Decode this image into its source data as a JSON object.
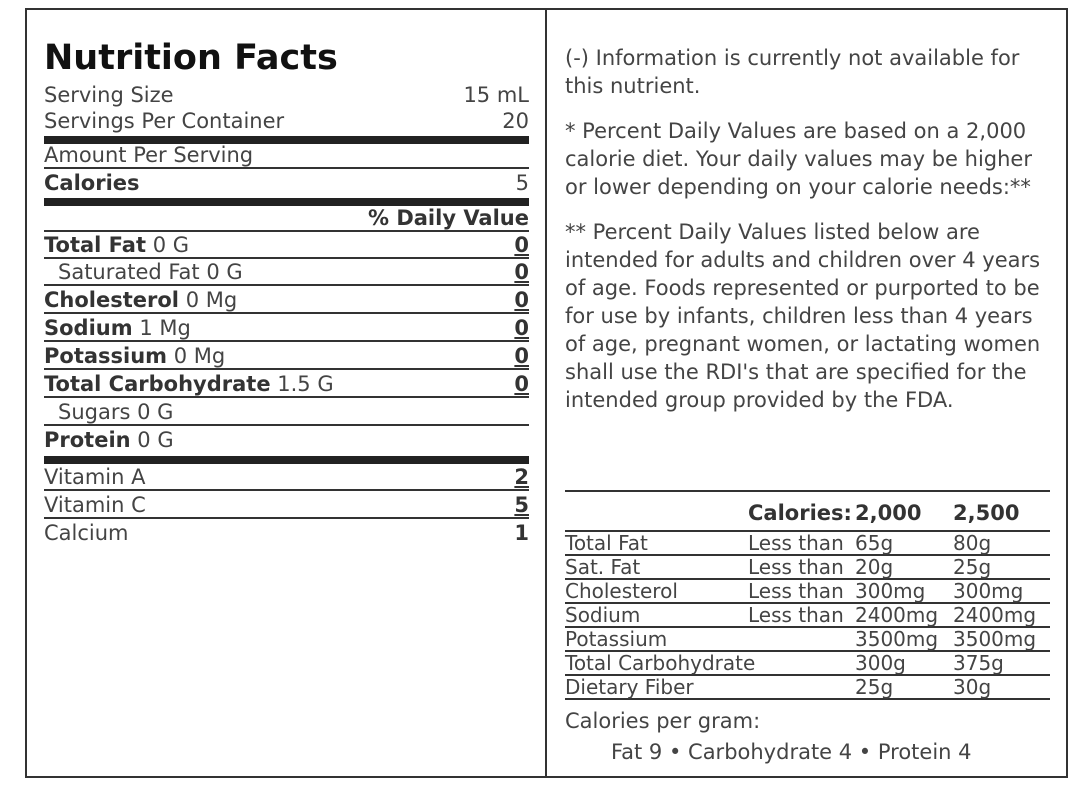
{
  "title": "Nutrition Facts",
  "serving": [
    {
      "label": "Serving Size",
      "value": "15 mL"
    },
    {
      "label": "Servings Per Container",
      "value": "20"
    }
  ],
  "amount_per_serving": "Amount Per Serving",
  "calories": {
    "label": "Calories",
    "value": "5"
  },
  "daily_value_header": "% Daily Value",
  "nutrients": [
    {
      "label": "Total Fat",
      "amount": "0 G",
      "dv": "0"
    },
    {
      "label": "Saturated Fat",
      "amount": "0 G",
      "dv": "0"
    },
    {
      "label": "Cholesterol",
      "amount": "0 Mg",
      "dv": "0"
    },
    {
      "label": "Sodium",
      "amount": "1 Mg",
      "dv": "0"
    },
    {
      "label": "Potassium",
      "amount": "0 Mg",
      "dv": "0"
    },
    {
      "label": "Total Carbohydrate",
      "amount": "1.5 G",
      "dv": "0"
    },
    {
      "label": "Sugars",
      "amount": "0 G",
      "dv": ""
    },
    {
      "label": "Protein",
      "amount": "0 G",
      "dv": ""
    }
  ],
  "vitamins": [
    {
      "label": "Vitamin A",
      "dv": "2"
    },
    {
      "label": "Vitamin C",
      "dv": "5"
    },
    {
      "label": "Calcium",
      "dv": "1"
    }
  ],
  "notes": {
    "info_unavailable": "(-) Information is currently not available for this nutrient.",
    "percent_note": "* Percent Daily Values are based on a 2,000 calorie diet. Your daily values may be higher or lower depending on your calorie needs:**",
    "rdi_note": "** Percent Daily Values listed below are intended for adults and children over 4 years of age. Foods represented or purported to be for use by infants, children less than 4 years of age, pregnant women, or lactating women shall use the RDI's that are specified for the intended group provided by the FDA."
  },
  "dv_table": {
    "header": {
      "calories_label": "Calories:",
      "col1": "2,000",
      "col2": "2,500"
    },
    "rows": [
      {
        "name": "Total Fat",
        "qual": "Less than",
        "v1": "65g",
        "v2": "80g"
      },
      {
        "name": "Sat. Fat",
        "qual": "Less than",
        "v1": "20g",
        "v2": "25g"
      },
      {
        "name": "Cholesterol",
        "qual": "Less than",
        "v1": "300mg",
        "v2": "300mg"
      },
      {
        "name": "Sodium",
        "qual": "Less than",
        "v1": "2400mg",
        "v2": "2400mg"
      },
      {
        "name": "Potassium",
        "qual": "",
        "v1": "3500mg",
        "v2": "3500mg"
      },
      {
        "name": "Total Carbohydrate",
        "qual": "",
        "v1": "300g",
        "v2": "375g"
      },
      {
        "name": "Dietary Fiber",
        "qual": "",
        "v1": "25g",
        "v2": "30g"
      }
    ]
  },
  "calories_per_gram": {
    "label": "Calories per gram:",
    "values": "Fat 9 • Carbohydrate 4 • Protein 4"
  }
}
